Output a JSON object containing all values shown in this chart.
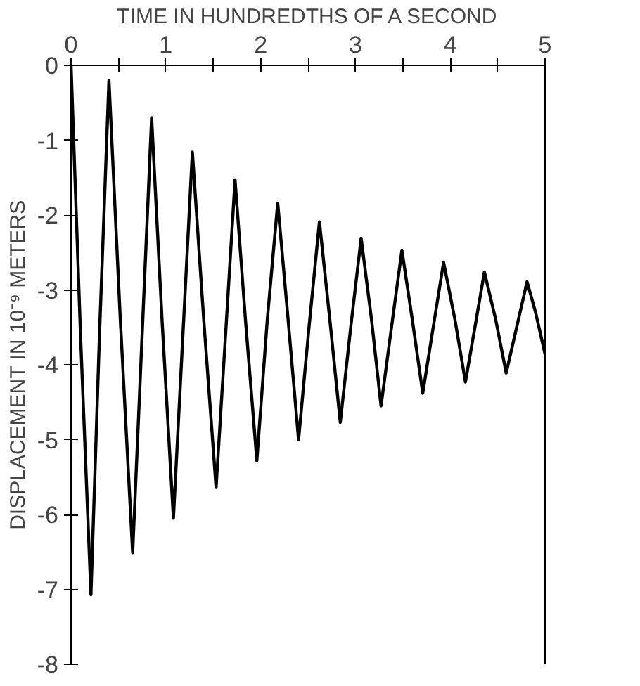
{
  "chart_data": {
    "type": "line",
    "xlabel": "TIME IN HUNDREDTHS OF A SECOND",
    "ylabel": "DISPLACEMENT IN 10⁻⁹ METERS",
    "x": [
      0,
      0.1,
      0.21,
      0.3,
      0.4,
      0.52,
      0.65,
      0.75,
      0.85,
      0.96,
      1.08,
      1.18,
      1.28,
      1.4,
      1.53,
      1.63,
      1.73,
      1.84,
      1.96,
      2.07,
      2.18,
      2.29,
      2.4,
      2.51,
      2.62,
      2.73,
      2.84,
      2.95,
      3.06,
      3.17,
      3.27,
      3.38,
      3.49,
      3.6,
      3.71,
      3.82,
      3.93,
      4.05,
      4.16,
      4.26,
      4.36,
      4.48,
      4.59,
      4.7,
      4.81,
      4.9,
      5.0
    ],
    "series": [
      {
        "color": "#000000",
        "values": [
          0,
          -3.6,
          -7.07,
          -3.6,
          -0.2,
          -3.4,
          -6.51,
          -3.6,
          -0.7,
          -3.4,
          -6.05,
          -3.6,
          -1.16,
          -3.4,
          -5.64,
          -3.6,
          -1.53,
          -3.4,
          -5.28,
          -3.4,
          -1.84,
          -3.4,
          -5.0,
          -3.5,
          -2.09,
          -3.4,
          -4.77,
          -3.5,
          -2.31,
          -3.4,
          -4.55,
          -3.5,
          -2.47,
          -3.4,
          -4.38,
          -3.5,
          -2.63,
          -3.4,
          -4.23,
          -3.5,
          -2.76,
          -3.4,
          -4.11,
          -3.5,
          -2.89,
          -3.3,
          -3.86
        ]
      }
    ],
    "xlim": [
      0,
      5
    ],
    "ylim": [
      -8,
      0
    ],
    "xticks": [
      0,
      {
        "value": 0.5,
        "label": null
      },
      1,
      {
        "value": 1.5,
        "label": null
      },
      2,
      {
        "value": 2.5,
        "label": null
      },
      3,
      {
        "value": 3.5,
        "label": null
      },
      4,
      {
        "value": 4.5,
        "label": null
      },
      5
    ],
    "yticks": [
      0,
      -1,
      -2,
      -3,
      -4,
      -5,
      -6,
      -7,
      -8
    ],
    "grid": false,
    "marker": "none",
    "line_style": "solid"
  }
}
